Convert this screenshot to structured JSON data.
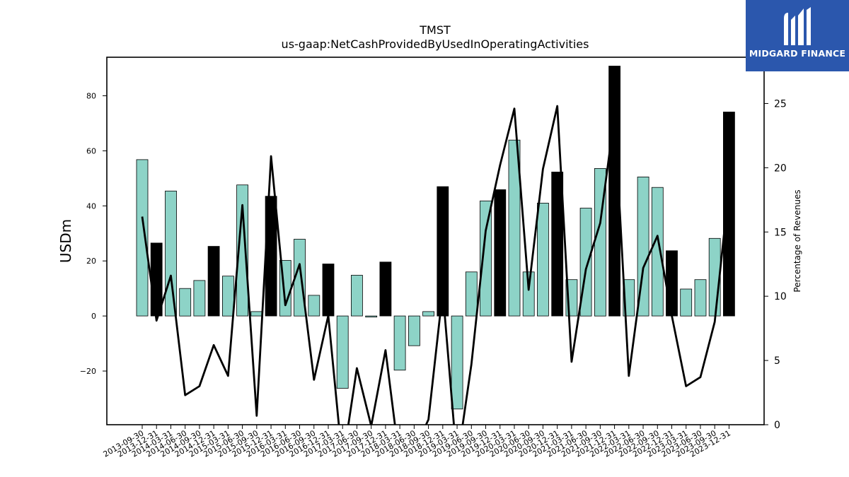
{
  "chart_data": {
    "type": "bar",
    "title": "TMST",
    "subtitle": "us-gaap:NetCashProvidedByUsedInOperatingActivities",
    "ylabel": "USDm",
    "y2label": "Percentage of Revenues",
    "ylim": [
      -39.5,
      94
    ],
    "y2lim": [
      0,
      28.6
    ],
    "yticks": [
      -20,
      0,
      20,
      40,
      60,
      80
    ],
    "y2ticks": [
      0,
      5,
      10,
      15,
      20,
      25
    ],
    "categories": [
      "2013-09-30",
      "2013-12-31",
      "2014-03-31",
      "2014-06-30",
      "2014-09-30",
      "2014-12-31",
      "2015-03-31",
      "2015-06-30",
      "2015-09-30",
      "2015-12-31",
      "2016-03-31",
      "2016-06-30",
      "2016-09-30",
      "2016-12-31",
      "2017-03-31",
      "2017-06-30",
      "2017-09-30",
      "2017-12-31",
      "2018-03-31",
      "2018-06-30",
      "2018-09-30",
      "2018-12-31",
      "2019-03-31",
      "2019-06-30",
      "2019-09-30",
      "2019-12-31",
      "2020-03-31",
      "2020-06-30",
      "2020-09-30",
      "2020-12-31",
      "2021-03-31",
      "2021-06-30",
      "2021-09-30",
      "2021-12-31",
      "2022-03-31",
      "2022-06-30",
      "2022-09-30",
      "2022-12-31",
      "2023-03-31",
      "2023-06-30",
      "2023-09-30",
      "2023-12-31"
    ],
    "series": [
      {
        "kind": "bar",
        "values": [
          56.8,
          26.5,
          45.4,
          10.0,
          12.9,
          25.3,
          14.5,
          47.6,
          1.6,
          43.5,
          20.2,
          27.9,
          7.5,
          18.9,
          -26.3,
          14.8,
          -0.4,
          19.6,
          -19.7,
          -10.8,
          1.6,
          47.0,
          -33.8,
          16.0,
          41.8,
          45.9,
          63.9,
          16.0,
          41.0,
          52.3,
          13.2,
          39.2,
          53.6,
          90.8,
          13.2,
          50.5,
          46.7,
          23.7,
          9.8,
          13.2,
          28.2,
          74.1
        ],
        "highlight": [
          false,
          true,
          false,
          false,
          false,
          true,
          false,
          false,
          false,
          true,
          false,
          false,
          false,
          true,
          false,
          false,
          false,
          true,
          false,
          false,
          false,
          true,
          false,
          false,
          false,
          true,
          false,
          false,
          false,
          true,
          false,
          false,
          false,
          true,
          false,
          false,
          false,
          true,
          false,
          false,
          false,
          true
        ],
        "colors": {
          "normal": "#8dd3c7",
          "highlight": "#000000"
        }
      },
      {
        "kind": "line",
        "axis": "right",
        "values": [
          16.2,
          8.1,
          11.6,
          2.3,
          3.0,
          6.2,
          3.8,
          17.1,
          0.7,
          20.9,
          9.3,
          12.5,
          3.5,
          8.5,
          -3,
          4.4,
          -0.1,
          5.8,
          -3,
          -2,
          0.4,
          10.4,
          -3,
          4.7,
          15.1,
          20.2,
          24.6,
          10.5,
          19.9,
          24.8,
          4.9,
          12.1,
          15.7,
          24.1,
          3.8,
          12.2,
          14.7,
          8.5,
          3.0,
          3.7,
          8.0,
          18.5
        ],
        "color": "#000000"
      }
    ],
    "grid": false,
    "legend": "none"
  },
  "logo": {
    "text": "MIDGARD FINANCE",
    "background": "#2b57ad"
  }
}
